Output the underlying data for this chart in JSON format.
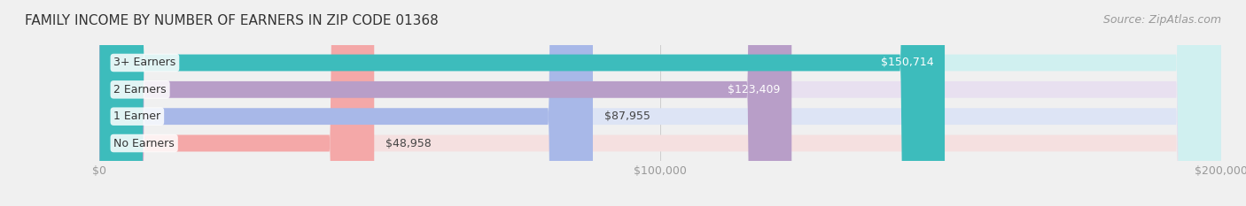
{
  "title": "FAMILY INCOME BY NUMBER OF EARNERS IN ZIP CODE 01368",
  "source": "Source: ZipAtlas.com",
  "categories": [
    "No Earners",
    "1 Earner",
    "2 Earners",
    "3+ Earners"
  ],
  "values": [
    48958,
    87955,
    123409,
    150714
  ],
  "bar_colors": [
    "#f4a8a8",
    "#a8b8e8",
    "#b89ec8",
    "#3dbcbc"
  ],
  "bar_bg_colors": [
    "#f5e0e0",
    "#dde4f5",
    "#e8e0f0",
    "#d0f0f0"
  ],
  "label_colors": [
    "#333333",
    "#333333",
    "#ffffff",
    "#ffffff"
  ],
  "x_max": 200000,
  "x_ticks": [
    0,
    100000,
    200000
  ],
  "x_tick_labels": [
    "$0",
    "$100,000",
    "$200,000"
  ],
  "background_color": "#f0f0f0",
  "bar_bg_color": "#e8e8e8",
  "title_fontsize": 11,
  "source_fontsize": 9,
  "tick_fontsize": 9,
  "label_fontsize": 9,
  "category_fontsize": 9
}
